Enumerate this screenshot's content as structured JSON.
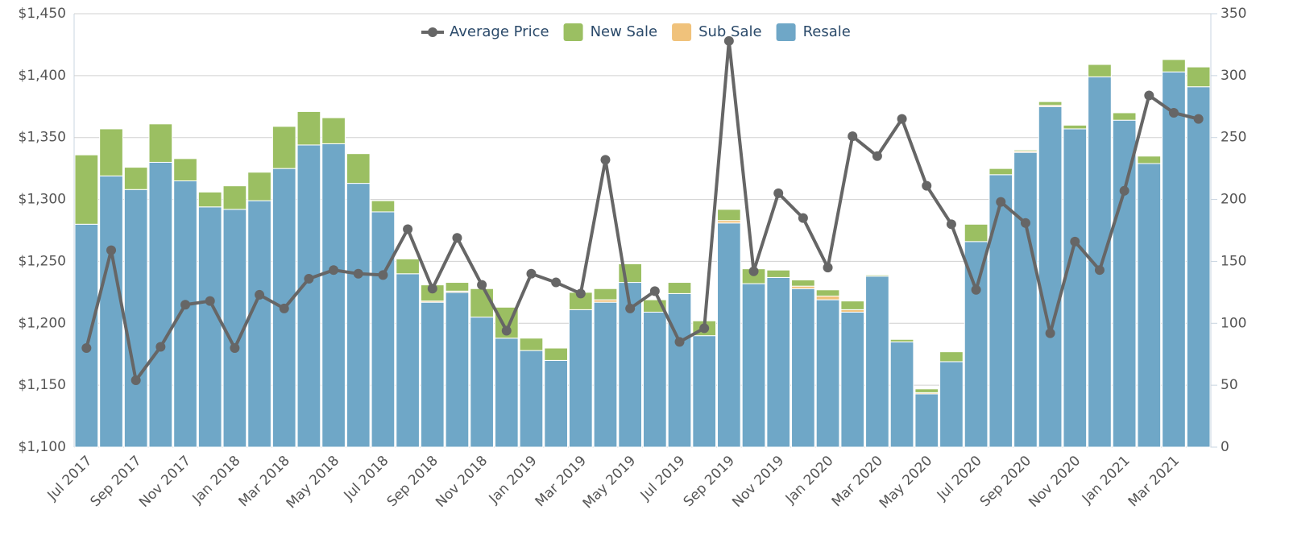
{
  "chart_data": {
    "type": "bar",
    "categories": [
      "Jul 2017",
      null,
      "Sep 2017",
      null,
      "Nov 2017",
      null,
      "Jan 2018",
      null,
      "Mar 2018",
      null,
      "May 2018",
      null,
      "Jul 2018",
      null,
      "Sep 2018",
      null,
      "Nov 2018",
      null,
      "Jan 2019",
      null,
      "Mar 2019",
      null,
      "May 2019",
      null,
      "Jul 2019",
      null,
      "Sep 2019",
      null,
      "Nov 2019",
      null,
      "Jan 2020",
      null,
      "Mar 2020",
      null,
      "May 2020",
      null,
      "Jul 2020",
      null,
      "Sep 2020",
      null,
      "Nov 2020",
      null,
      "Jan 2021",
      null,
      "Mar 2021",
      null
    ],
    "series": [
      {
        "name": "Average Price",
        "type": "line",
        "color": "#666666",
        "values": [
          1180,
          1259,
          1154,
          1181,
          1215,
          1218,
          1180,
          1223,
          1212,
          1236,
          1243,
          1240,
          1239,
          1276,
          1228,
          1269,
          1231,
          1194,
          1240,
          1233,
          1224,
          1332,
          1212,
          1226,
          1185,
          1196,
          1428,
          1242,
          1305,
          1285,
          1245,
          1351,
          1335,
          1365,
          1311,
          1280,
          1227,
          1298,
          1281,
          1192,
          1266,
          1243,
          1307,
          1384,
          1370,
          1365
        ]
      },
      {
        "name": "New Sale",
        "type": "bar",
        "axis": "y2",
        "color": "#9bbf62",
        "values": [
          56,
          38,
          18,
          31,
          18,
          12,
          19,
          23,
          34,
          27,
          21,
          24,
          9,
          12,
          13,
          7,
          23,
          25,
          10,
          10,
          14,
          9,
          15,
          10,
          9,
          12,
          9,
          12,
          6,
          5,
          5,
          7,
          1,
          2,
          3,
          8,
          14,
          5,
          1,
          3,
          3,
          10,
          6,
          6,
          10,
          16
        ]
      },
      {
        "name": "Sub Sale",
        "type": "bar",
        "axis": "y2",
        "color": "#f0c27b",
        "values": [
          0,
          0,
          0,
          0,
          0,
          0,
          0,
          0,
          0,
          0,
          0,
          0,
          0,
          0,
          1,
          1,
          0,
          0,
          0,
          0,
          0,
          2,
          0,
          0,
          0,
          0,
          2,
          0,
          0,
          2,
          3,
          2,
          0,
          0,
          1,
          0,
          0,
          0,
          1,
          1,
          0,
          0,
          0,
          0,
          0,
          0
        ]
      },
      {
        "name": "Resale",
        "type": "bar",
        "axis": "y2",
        "color": "#6fa7c7",
        "values": [
          180,
          219,
          208,
          230,
          215,
          194,
          192,
          199,
          225,
          244,
          245,
          213,
          190,
          140,
          117,
          125,
          105,
          88,
          78,
          70,
          111,
          117,
          133,
          109,
          124,
          90,
          181,
          132,
          137,
          128,
          119,
          109,
          138,
          85,
          43,
          69,
          166,
          220,
          238,
          275,
          257,
          299,
          264,
          229,
          303,
          291
        ]
      }
    ],
    "ylim": [
      1100,
      1450
    ],
    "yticks": [
      {
        "value": 1100,
        "label": "$1,100"
      },
      {
        "value": 1150,
        "label": "$1,150"
      },
      {
        "value": 1200,
        "label": "$1,200"
      },
      {
        "value": 1250,
        "label": "$1,250"
      },
      {
        "value": 1300,
        "label": "$1,300"
      },
      {
        "value": 1350,
        "label": "$1,350"
      },
      {
        "value": 1400,
        "label": "$1,400"
      },
      {
        "value": 1450,
        "label": "$1,450"
      }
    ],
    "y2lim": [
      0,
      350
    ],
    "y2ticks": [
      0,
      50,
      100,
      150,
      200,
      250,
      300,
      350
    ],
    "grid": true,
    "legend": "top"
  }
}
